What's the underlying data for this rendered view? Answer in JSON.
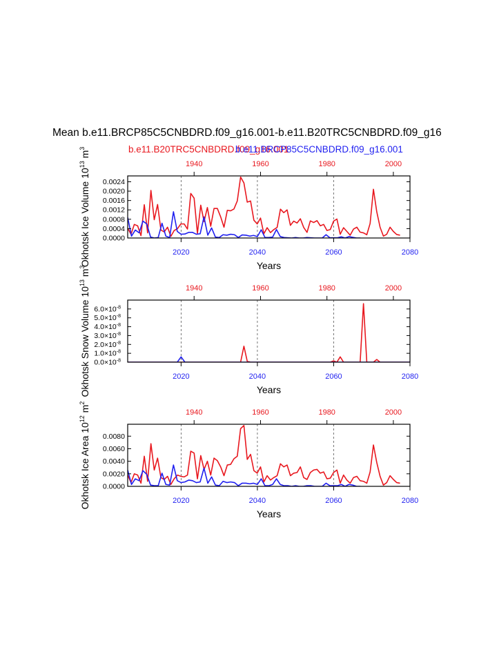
{
  "page": {
    "main_title": "Mean b.e11.BRCP85C5CNBDRD.f09_g16.001-b.e11.B20TRC5CNBDRD.f09_g16",
    "legend_red": "b.e11.B20TRC5CNBDRD.f09_g16.001",
    "legend_blue": "b.e11.BRCP85C5CNBDRD.f09_g16.001",
    "colors": {
      "red": "#e8171e",
      "blue": "#1f1ff0",
      "axis": "#000000"
    }
  },
  "chart_data": [
    {
      "type": "line",
      "id": "ice-volume",
      "ylabel": "Okhotsk Ice Volume 10",
      "ylabel_sup": "13",
      "ylabel_unit": " m",
      "ylabel_unit_sup": "3",
      "xlabel": "Years",
      "ylim": [
        0,
        0.00265
      ],
      "ytick_values": [
        0,
        0.0004,
        0.0008,
        0.0012,
        0.0016,
        0.002,
        0.0024
      ],
      "ytick_labels": [
        "0.0000",
        "0.0004",
        "0.0008",
        "0.0012",
        "0.0016",
        "0.0020",
        "0.0024"
      ],
      "x_bottom": {
        "range": [
          2006,
          2080
        ],
        "ticks": [
          2020,
          2040,
          2060,
          2080
        ],
        "labels": [
          "2020",
          "2040",
          "2060",
          "2080"
        ]
      },
      "x_top": {
        "range": [
          1920,
          2005
        ],
        "ticks": [
          1940,
          1960,
          1980,
          2000
        ],
        "labels": [
          "1940",
          "1960",
          "1980",
          "2000"
        ]
      },
      "ref_lines": [
        2020,
        2040,
        2060
      ],
      "series": [
        {
          "name": "b.e11.B20TRC5CNBDRD.f09_g16.001",
          "color": "#e8171e",
          "axis": "top",
          "x_start": 1920,
          "values": [
            0.00042,
            0.00016,
            0.00058,
            0.00052,
            0.0001,
            0.00142,
            0.00022,
            0.00203,
            0.00078,
            0.00143,
            0.00034,
            0.00026,
            0.00046,
            7e-05,
            0.00032,
            0.0004,
            0.0006,
            0.0006,
            0.00038,
            0.0019,
            0.0017,
            0.0002,
            0.0014,
            0.0007,
            0.0013,
            0.0005,
            0.00126,
            0.00126,
            0.0009,
            0.00046,
            0.00118,
            0.00116,
            0.00124,
            0.00158,
            0.0026,
            0.00235,
            0.00153,
            0.00158,
            0.00076,
            0.0006,
            0.00085,
            0.00018,
            0.00044,
            0.00023,
            0.00036,
            0.00045,
            0.00123,
            0.00108,
            0.0012,
            0.00054,
            0.00072,
            0.00064,
            0.00082,
            0.00045,
            0.00024,
            0.00073,
            0.00066,
            0.00074,
            0.00052,
            0.00058,
            0.00032,
            0.00036,
            0.00072,
            0.00081,
            0.00016,
            0.00044,
            0.00028,
            0.00012,
            0.00038,
            0.00046,
            0.00025,
            0.00022,
            0.00014,
            0.00062,
            0.00208,
            0.00112,
            0.00046,
            8e-05,
            0.00016,
            0.00046,
            0.00028,
            0.00015,
            0.00012
          ]
        },
        {
          "name": "b.e11.BRCP85C5CNBDRD.f09_g16.001",
          "color": "#1f1ff0",
          "axis": "bottom",
          "x_start": 2006,
          "values": [
            0.00088,
            8e-05,
            0.00034,
            0.00022,
            0.00072,
            0.0006,
            4e-05,
            0.0,
            2e-05,
            0.00063,
            8e-05,
            2e-05,
            0.00112,
            0.00028,
            0.00016,
            0.00017,
            0.00024,
            0.00024,
            0.00016,
            0.00018,
            0.0009,
            0.00012,
            0.00043,
            4e-05,
            2e-05,
            0.00014,
            0.00012,
            0.00016,
            0.00014,
            2e-05,
            0.00013,
            0.00012,
            8e-05,
            0.00011,
            6e-05,
            0.00035,
            2e-05,
            2e-05,
            4e-05,
            0.00036,
            6e-05,
            2e-05,
            1e-05,
            0.0,
            2e-05,
            0.0,
            0.0,
            2e-05,
            1e-05,
            0.0,
            0.0,
            0.0,
            0.00014,
            1e-05,
            1e-05,
            1e-05,
            5e-05,
            0.0,
            6e-05,
            3e-05,
            0.0,
            0.0
          ]
        }
      ]
    },
    {
      "type": "line",
      "id": "snow-volume",
      "ylabel": "Okhotsk Snow Volume 10",
      "ylabel_sup": "13",
      "ylabel_unit": " m",
      "ylabel_unit_sup": "3",
      "xlabel": "Years",
      "ylim": [
        0,
        7e-08
      ],
      "ytick_values": [
        0,
        1e-08,
        2e-08,
        3e-08,
        4e-08,
        5e-08,
        6e-08
      ],
      "ytick_labels": [
        "0.0×10",
        "1.0×10",
        "2.0×10",
        "3.0×10",
        "4.0×10",
        "5.0×10",
        "6.0×10"
      ],
      "ytick_exponent": "-8",
      "x_bottom": {
        "range": [
          2006,
          2080
        ],
        "ticks": [
          2020,
          2040,
          2060,
          2080
        ],
        "labels": [
          "2020",
          "2040",
          "2060",
          "2080"
        ]
      },
      "x_top": {
        "range": [
          1920,
          2005
        ],
        "ticks": [
          1940,
          1960,
          1980,
          2000
        ],
        "labels": [
          "1940",
          "1960",
          "1980",
          "2000"
        ]
      },
      "ref_lines": [
        2020,
        2040,
        2060
      ],
      "series": [
        {
          "name": "b.e11.B20TRC5CNBDRD.f09_g16.001",
          "color": "#e8171e",
          "axis": "top",
          "x_start": 1920,
          "values": [
            0,
            0,
            0,
            0,
            0,
            0,
            0,
            0,
            0,
            0,
            0,
            0,
            0,
            0,
            0,
            0,
            0,
            0,
            0,
            0,
            0,
            0,
            0,
            0,
            0,
            0,
            0,
            0,
            0,
            0,
            0,
            0,
            0,
            0,
            0,
            1.8e-08,
            1e-09,
            0,
            0,
            0,
            0,
            0,
            0,
            0,
            0,
            0,
            0,
            0,
            0,
            0,
            0,
            0,
            0,
            0,
            0,
            0,
            0,
            0,
            0,
            0,
            0,
            0,
            1.5e-09,
            0,
            6e-09,
            0,
            0,
            0,
            0,
            0,
            0,
            6.6e-08,
            0,
            0,
            0,
            3e-09,
            0,
            0,
            0,
            0,
            0,
            0,
            0,
            0,
            0,
            0,
            0
          ]
        },
        {
          "name": "b.e11.BRCP85C5CNBDRD.f09_g16.001",
          "color": "#1f1ff0",
          "axis": "bottom",
          "x_start": 2006,
          "values": [
            0,
            0,
            0,
            0,
            0,
            0,
            0,
            0,
            0,
            0,
            0,
            0,
            0,
            0,
            6e-09,
            0,
            0,
            0,
            0,
            0,
            0,
            0,
            0,
            0,
            0,
            0,
            0,
            0,
            0,
            0,
            0,
            0,
            0,
            0,
            0,
            0,
            0,
            0,
            0,
            0,
            0,
            0,
            0,
            0,
            0,
            0,
            0,
            0,
            0,
            0,
            0,
            0,
            0,
            0,
            0,
            0,
            0,
            0,
            0,
            0,
            0,
            0,
            0,
            0,
            0,
            0,
            0,
            0,
            0,
            0,
            0,
            0,
            0,
            0,
            0
          ]
        }
      ]
    },
    {
      "type": "line",
      "id": "ice-area",
      "ylabel": "Okhotsk Ice Area 10",
      "ylabel_sup": "12",
      "ylabel_unit": " m",
      "ylabel_unit_sup": "2",
      "xlabel": "Years",
      "ylim": [
        0,
        0.0099
      ],
      "ytick_values": [
        0,
        0.002,
        0.004,
        0.006,
        0.008
      ],
      "ytick_labels": [
        "0.0000",
        "0.0020",
        "0.0040",
        "0.0060",
        "0.0080"
      ],
      "x_bottom": {
        "range": [
          2006,
          2080
        ],
        "ticks": [
          2020,
          2040,
          2060,
          2080
        ],
        "labels": [
          "2020",
          "2040",
          "2060",
          "2080"
        ]
      },
      "x_top": {
        "range": [
          1920,
          2005
        ],
        "ticks": [
          1940,
          1960,
          1980,
          2000
        ],
        "labels": [
          "1940",
          "1960",
          "1980",
          "2000"
        ]
      },
      "ref_lines": [
        2020,
        2040,
        2060
      ],
      "series": [
        {
          "name": "b.e11.B20TRC5CNBDRD.f09_g16.001",
          "color": "#e8171e",
          "axis": "top",
          "x_start": 1920,
          "values": [
            0.0018,
            0.0006,
            0.002,
            0.0018,
            0.0005,
            0.0048,
            0.0008,
            0.0068,
            0.0026,
            0.0045,
            0.0014,
            0.0011,
            0.0016,
            0.0003,
            0.0012,
            0.0018,
            0.0016,
            0.0015,
            0.0018,
            0.0056,
            0.0053,
            0.0012,
            0.0049,
            0.0027,
            0.004,
            0.0018,
            0.0045,
            0.0041,
            0.0031,
            0.0017,
            0.0034,
            0.0035,
            0.0044,
            0.0048,
            0.0092,
            0.0097,
            0.0043,
            0.0051,
            0.0025,
            0.0021,
            0.0031,
            0.0007,
            0.0017,
            0.001,
            0.0014,
            0.0017,
            0.0036,
            0.0031,
            0.0034,
            0.0017,
            0.0021,
            0.0022,
            0.0031,
            0.0014,
            0.0011,
            0.0022,
            0.0026,
            0.0027,
            0.0021,
            0.0023,
            0.0012,
            0.0013,
            0.0022,
            0.0026,
            0.0005,
            0.0018,
            0.001,
            0.0005,
            0.0014,
            0.0016,
            0.0009,
            0.0008,
            0.0005,
            0.0023,
            0.0066,
            0.0038,
            0.0016,
            0.0002,
            0.0006,
            0.0017,
            0.0011,
            0.0006,
            0.0005
          ]
        },
        {
          "name": "b.e11.BRCP85C5CNBDRD.f09_g16.001",
          "color": "#1f1ff0",
          "axis": "bottom",
          "x_start": 2006,
          "values": [
            0.0026,
            0.0003,
            0.0012,
            0.0009,
            0.0025,
            0.0019,
            0.0002,
            0.0001,
            0.0001,
            0.0021,
            0.0003,
            0.0002,
            0.0034,
            0.0009,
            0.0006,
            0.0007,
            0.001,
            0.0009,
            0.0006,
            0.0007,
            0.0029,
            0.0005,
            0.0015,
            0.0002,
            0.0001,
            0.0008,
            0.0006,
            0.0007,
            0.0006,
            0.0001,
            0.0005,
            0.0005,
            0.0004,
            0.0005,
            0.0003,
            0.0012,
            0.0001,
            0.0001,
            0.0003,
            0.0012,
            0.0003,
            0.0001,
            0.0001,
            0.0,
            0.0001,
            0.0,
            0.0,
            0.0001,
            0.0001,
            0.0,
            0.0,
            0.0,
            0.0005,
            0.0001,
            0.0001,
            0.0001,
            0.0003,
            0.0,
            0.0003,
            0.0002,
            0.0,
            0.0
          ]
        }
      ]
    }
  ]
}
